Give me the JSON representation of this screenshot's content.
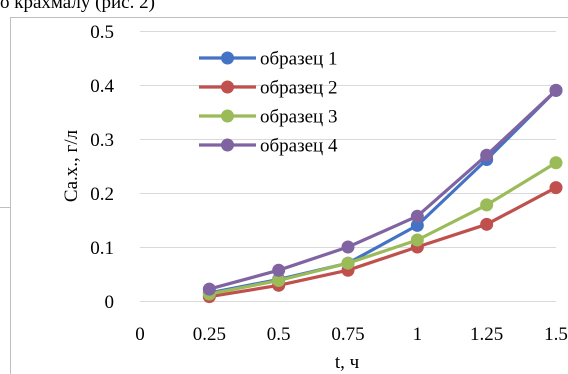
{
  "header_fragment": "о крахмалу (рис. 2)",
  "chart_data": {
    "type": "line",
    "xlabel": "t, ч",
    "ylabel": "Са.х., г/л",
    "x_ticks": [
      "0",
      "0.25",
      "0.5",
      "0.75",
      "1",
      "1.25",
      "1.5"
    ],
    "y_ticks": [
      "0",
      "0.1",
      "0.2",
      "0.3",
      "0.4",
      "0.5"
    ],
    "xlim": [
      0,
      1.5
    ],
    "ylim": [
      0,
      0.5
    ],
    "grid": "horizontal",
    "legend_position": "top-left",
    "x": [
      0.25,
      0.5,
      0.75,
      1,
      1.25,
      1.5
    ],
    "series": [
      {
        "name": "образец 1",
        "color": "#4472C4",
        "values": [
          0.015,
          0.04,
          0.07,
          0.14,
          0.262,
          0.39
        ]
      },
      {
        "name": "образец 2",
        "color": "#C0504D",
        "values": [
          0.008,
          0.029,
          0.057,
          0.1,
          0.142,
          0.21
        ]
      },
      {
        "name": "образец 3",
        "color": "#9BBB59",
        "values": [
          0.013,
          0.038,
          0.07,
          0.113,
          0.178,
          0.256
        ]
      },
      {
        "name": "образец 4",
        "color": "#8064A2",
        "values": [
          0.022,
          0.057,
          0.1,
          0.157,
          0.27,
          0.39
        ]
      }
    ]
  }
}
